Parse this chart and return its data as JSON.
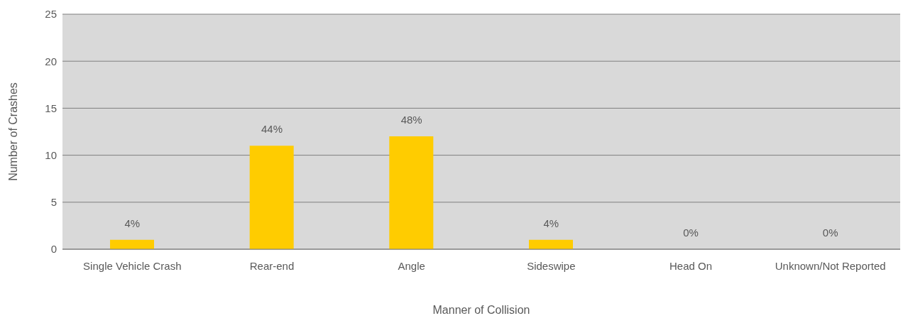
{
  "chart_data": {
    "type": "bar",
    "xlabel": "Manner of Collision",
    "ylabel": "Number of Crashes",
    "categories": [
      "Single Vehicle Crash",
      "Rear-end",
      "Angle",
      "Sideswipe",
      "Head On",
      "Unknown/Not Reported"
    ],
    "values": [
      1,
      11,
      12,
      1,
      0,
      0
    ],
    "annotations": [
      {
        "text": "4%",
        "x": "Single Vehicle Crash",
        "y": 1
      },
      {
        "text": "44%",
        "x": "Rear-end",
        "y": 11
      },
      {
        "text": "48%",
        "x": "Angle",
        "y": 12
      },
      {
        "text": "4%",
        "x": "Sideswipe",
        "y": 1
      },
      {
        "text": "0%",
        "x": "Head On",
        "y": 0
      },
      {
        "text": "0%",
        "x": "Unknown/Not Reported",
        "y": 0
      }
    ],
    "color": "#ffcc00",
    "ylim": [
      0,
      25
    ],
    "yticks": [
      0,
      5,
      10,
      15,
      20,
      25
    ],
    "grid": "y"
  }
}
